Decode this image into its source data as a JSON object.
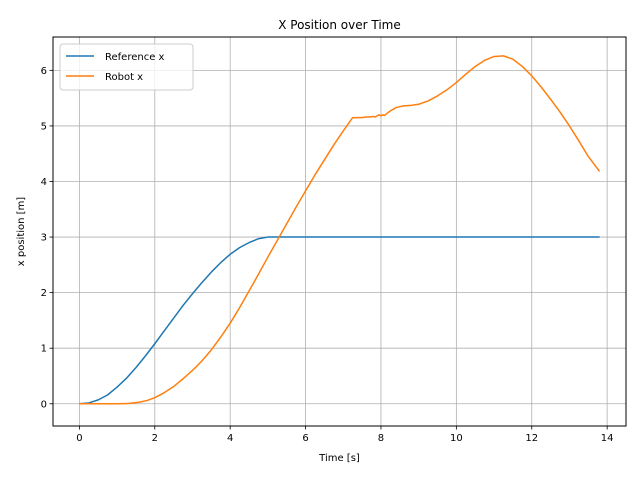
{
  "chart_data": {
    "type": "line",
    "title": "X Position over Time",
    "xlabel": "Time [s]",
    "ylabel": "x position [m]",
    "xlim": [
      -0.7,
      14.5
    ],
    "ylim": [
      -0.4,
      6.6
    ],
    "xticks": [
      0,
      2,
      4,
      6,
      8,
      10,
      12,
      14
    ],
    "yticks": [
      0,
      1,
      2,
      3,
      4,
      5,
      6
    ],
    "grid": true,
    "legend_position": "top-left",
    "series": [
      {
        "name": "Reference x",
        "color": "#1f77b4",
        "x": [
          0,
          0.25,
          0.5,
          0.75,
          1,
          1.25,
          1.5,
          1.75,
          2,
          2.25,
          2.5,
          2.75,
          3,
          3.25,
          3.5,
          3.75,
          4,
          4.25,
          4.5,
          4.75,
          5,
          5.5,
          6,
          7,
          8,
          9,
          10,
          11,
          12,
          13,
          13.8
        ],
        "y": [
          0,
          0.015,
          0.07,
          0.16,
          0.3,
          0.46,
          0.65,
          0.86,
          1.08,
          1.31,
          1.54,
          1.77,
          1.98,
          2.18,
          2.37,
          2.54,
          2.69,
          2.81,
          2.9,
          2.97,
          3.0,
          3.0,
          3.0,
          3.0,
          3.0,
          3.0,
          3.0,
          3.0,
          3.0,
          3.0,
          3.0
        ]
      },
      {
        "name": "Robot x",
        "color": "#ff7f0e",
        "x": [
          0,
          0.5,
          1,
          1.3,
          1.6,
          1.8,
          2,
          2.25,
          2.5,
          2.75,
          3,
          3.25,
          3.5,
          3.75,
          4,
          4.25,
          4.5,
          4.75,
          5,
          5.25,
          5.5,
          5.75,
          6,
          6.25,
          6.5,
          6.75,
          7,
          7.25,
          7.5,
          7.6,
          7.7,
          7.8,
          7.85,
          7.9,
          7.95,
          8,
          8.05,
          8.1,
          8.15,
          8.25,
          8.4,
          8.6,
          8.8,
          9,
          9.25,
          9.5,
          9.75,
          10,
          10.25,
          10.5,
          10.75,
          11,
          11.25,
          11.5,
          11.75,
          12,
          12.25,
          12.5,
          12.75,
          13,
          13.25,
          13.5,
          13.8
        ],
        "y": [
          0,
          0,
          0,
          0.005,
          0.03,
          0.06,
          0.11,
          0.2,
          0.31,
          0.45,
          0.6,
          0.77,
          0.97,
          1.2,
          1.45,
          1.73,
          2.03,
          2.33,
          2.64,
          2.94,
          3.24,
          3.54,
          3.83,
          4.12,
          4.39,
          4.66,
          4.91,
          5.15,
          5.15,
          5.16,
          5.16,
          5.17,
          5.16,
          5.18,
          5.2,
          5.18,
          5.2,
          5.19,
          5.22,
          5.27,
          5.33,
          5.36,
          5.37,
          5.39,
          5.45,
          5.54,
          5.65,
          5.78,
          5.93,
          6.07,
          6.18,
          6.25,
          6.26,
          6.2,
          6.07,
          5.9,
          5.7,
          5.48,
          5.25,
          5.0,
          4.73,
          4.45,
          4.18
        ]
      }
    ]
  }
}
